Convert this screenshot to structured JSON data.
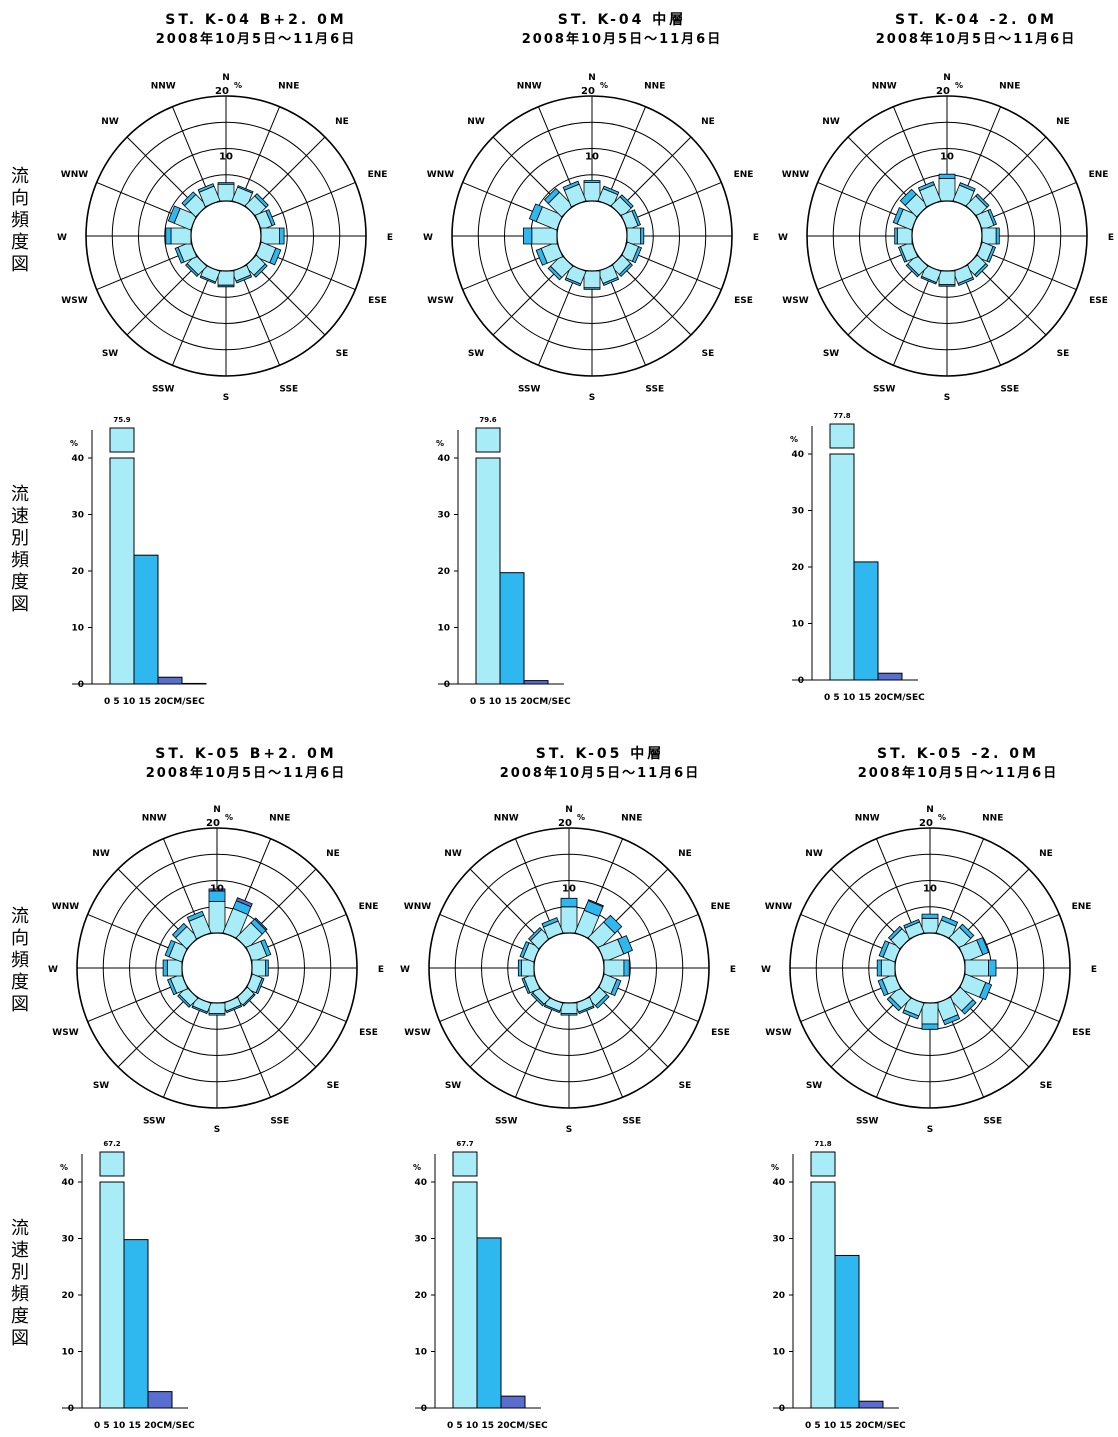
{
  "side_labels": {
    "direction": [
      "流",
      "向",
      "頻",
      "度",
      "図"
    ],
    "speed": [
      "流",
      "速",
      "別",
      "頻",
      "度",
      "図"
    ]
  },
  "directions": [
    "N",
    "NNE",
    "NE",
    "ENE",
    "E",
    "ESE",
    "SE",
    "SSE",
    "S",
    "SSW",
    "SW",
    "WSW",
    "W",
    "WNW",
    "NW",
    "NNW"
  ],
  "rose_scale": {
    "ring_labels": [
      "10",
      "20"
    ],
    "percent_mark": "%"
  },
  "hist_axis": {
    "percent_mark": "%",
    "yticks": [
      "0",
      "10",
      "20",
      "30",
      "40"
    ],
    "x_label": "0   5   10  15 20CM/SEC"
  },
  "colors": {
    "speed_0_5": "#a8ecf8",
    "speed_5_10": "#2fb8f0",
    "speed_10_15": "#5a6ed0",
    "speed_15_20": "#2a3a9a",
    "line": "#000000"
  },
  "chart_data": [
    {
      "type": "rose+bar",
      "title": "ST. K-04  B+2. 0M",
      "subtitle": "2008年10月5日～11月6日",
      "rose": {
        "calm": [
          0
        ],
        "segments": [
          [
            3.2,
            0.3,
            0
          ],
          [
            2.8,
            0.3,
            0
          ],
          [
            2.6,
            0.6,
            0
          ],
          [
            2.2,
            0.6,
            0
          ],
          [
            3.5,
            0.9,
            0
          ],
          [
            3.0,
            1.0,
            0
          ],
          [
            2.4,
            0.5,
            0
          ],
          [
            2.0,
            0.4,
            0
          ],
          [
            2.7,
            0.3,
            0
          ],
          [
            2.2,
            0.3,
            0
          ],
          [
            2.3,
            0.4,
            0
          ],
          [
            2.6,
            0.6,
            0
          ],
          [
            3.8,
            1.0,
            0
          ],
          [
            3.4,
            1.2,
            0
          ],
          [
            3.0,
            0.7,
            0
          ],
          [
            3.0,
            0.5,
            0
          ]
        ]
      },
      "histogram": {
        "bins": [
          "0-5",
          "5-10",
          "10-15",
          "15-20"
        ],
        "values": [
          75.9,
          22.8,
          1.2,
          0.1
        ],
        "top_label": "75.9"
      }
    },
    {
      "type": "rose+bar",
      "title": "ST. K-04  中層",
      "subtitle": "2008年10月5日～11月6日",
      "rose": {
        "calm": [
          0
        ],
        "segments": [
          [
            3.5,
            0.4,
            0
          ],
          [
            2.5,
            0.5,
            0
          ],
          [
            2.4,
            0.5,
            0
          ],
          [
            2.2,
            0.5,
            0
          ],
          [
            2.6,
            0.6,
            0
          ],
          [
            2.3,
            0.6,
            0
          ],
          [
            2.2,
            0.5,
            0
          ],
          [
            2.5,
            0.4,
            0
          ],
          [
            3.2,
            0.3,
            0
          ],
          [
            2.6,
            0.4,
            0
          ],
          [
            3.0,
            0.6,
            0
          ],
          [
            3.2,
            1.0,
            0
          ],
          [
            4.8,
            1.6,
            0
          ],
          [
            4.2,
            1.4,
            0
          ],
          [
            3.6,
            1.0,
            0
          ],
          [
            3.4,
            0.6,
            0
          ]
        ]
      },
      "histogram": {
        "bins": [
          "0-5",
          "5-10",
          "10-15",
          "15-20"
        ],
        "values": [
          79.6,
          19.7,
          0.6,
          0.0
        ],
        "top_label": "79.6"
      }
    },
    {
      "type": "rose+bar",
      "title": "ST. K-04  -2. 0M",
      "subtitle": "2008年10月5日～11月6日",
      "rose": {
        "calm": [
          0
        ],
        "segments": [
          [
            4.3,
            0.8,
            0
          ],
          [
            3.2,
            0.5,
            0
          ],
          [
            2.6,
            0.5,
            0
          ],
          [
            2.4,
            0.5,
            0
          ],
          [
            2.7,
            0.6,
            0
          ],
          [
            2.2,
            0.5,
            0
          ],
          [
            2.3,
            0.5,
            0
          ],
          [
            2.5,
            0.4,
            0
          ],
          [
            2.6,
            0.3,
            0
          ],
          [
            2.3,
            0.3,
            0
          ],
          [
            2.4,
            0.4,
            0
          ],
          [
            2.3,
            0.4,
            0
          ],
          [
            2.8,
            0.5,
            0
          ],
          [
            3.0,
            0.8,
            0
          ],
          [
            3.1,
            1.3,
            0
          ],
          [
            3.3,
            0.6,
            0
          ]
        ]
      },
      "histogram": {
        "bins": [
          "0-5",
          "5-10",
          "10-15",
          "15-20"
        ],
        "values": [
          77.8,
          20.9,
          1.2,
          0.0
        ],
        "top_label": "77.8"
      }
    },
    {
      "type": "rose+bar",
      "title": "ST. K-05  B+2. 0M",
      "subtitle": "2008年10月5日～11月6日",
      "rose": {
        "calm": [
          0
        ],
        "segments": [
          [
            6.0,
            2.0,
            0.4
          ],
          [
            5.0,
            1.6,
            0.6
          ],
          [
            4.0,
            1.0,
            0.3
          ],
          [
            3.0,
            0.8,
            0
          ],
          [
            2.6,
            0.5,
            0
          ],
          [
            2.0,
            0.4,
            0
          ],
          [
            1.8,
            0.3,
            0
          ],
          [
            1.6,
            0.3,
            0
          ],
          [
            2.0,
            0.3,
            0
          ],
          [
            1.8,
            0.3,
            0
          ],
          [
            2.0,
            0.4,
            0
          ],
          [
            2.3,
            0.6,
            0
          ],
          [
            2.8,
            0.8,
            0
          ],
          [
            2.6,
            0.8,
            0
          ],
          [
            3.0,
            0.8,
            0
          ],
          [
            3.6,
            0.8,
            0
          ]
        ]
      },
      "histogram": {
        "bins": [
          "0-5",
          "5-10",
          "10-15",
          "15-20"
        ],
        "values": [
          67.2,
          29.8,
          2.9,
          0.0
        ],
        "top_label": "67.2"
      }
    },
    {
      "type": "rose+bar",
      "title": "ST. K-05  中層",
      "subtitle": "2008年10月5日～11月6日",
      "rose": {
        "calm": [
          0
        ],
        "segments": [
          [
            5.0,
            1.6,
            0
          ],
          [
            4.6,
            2.0,
            0.2
          ],
          [
            4.2,
            1.8,
            0
          ],
          [
            4.0,
            1.8,
            0
          ],
          [
            3.8,
            1.0,
            0
          ],
          [
            2.6,
            0.8,
            0
          ],
          [
            2.0,
            0.6,
            0
          ],
          [
            1.8,
            0.3,
            0
          ],
          [
            2.0,
            0.3,
            0
          ],
          [
            1.6,
            0.3,
            0
          ],
          [
            1.6,
            0.4,
            0
          ],
          [
            2.0,
            0.4,
            0
          ],
          [
            2.4,
            0.6,
            0
          ],
          [
            2.2,
            0.6,
            0
          ],
          [
            2.2,
            0.5,
            0
          ],
          [
            2.4,
            0.7,
            0
          ]
        ]
      },
      "histogram": {
        "bins": [
          "0-5",
          "5-10",
          "10-15",
          "15-20"
        ],
        "values": [
          67.7,
          30.1,
          2.1,
          0.0
        ],
        "top_label": "67.7"
      }
    },
    {
      "type": "rose+bar",
      "title": "ST. K-05  -2. 0M",
      "subtitle": "2008年10月5日～11月6日",
      "rose": {
        "calm": [
          0
        ],
        "segments": [
          [
            2.8,
            0.8,
            0
          ],
          [
            2.6,
            0.8,
            0
          ],
          [
            2.8,
            0.8,
            0
          ],
          [
            3.6,
            1.2,
            0
          ],
          [
            4.5,
            1.4,
            0
          ],
          [
            4.2,
            1.2,
            0
          ],
          [
            3.4,
            0.8,
            0
          ],
          [
            3.6,
            0.8,
            0
          ],
          [
            4.0,
            1.0,
            0
          ],
          [
            2.6,
            0.6,
            0
          ],
          [
            2.6,
            0.7,
            0
          ],
          [
            2.6,
            0.8,
            0
          ],
          [
            2.6,
            0.8,
            0
          ],
          [
            2.4,
            0.8,
            0
          ],
          [
            2.4,
            0.6,
            0
          ],
          [
            2.2,
            0.5,
            0
          ]
        ]
      },
      "histogram": {
        "bins": [
          "0-5",
          "5-10",
          "10-15",
          "15-20"
        ],
        "values": [
          71.8,
          27.0,
          1.2,
          0.0
        ],
        "top_label": "71.8"
      }
    }
  ]
}
